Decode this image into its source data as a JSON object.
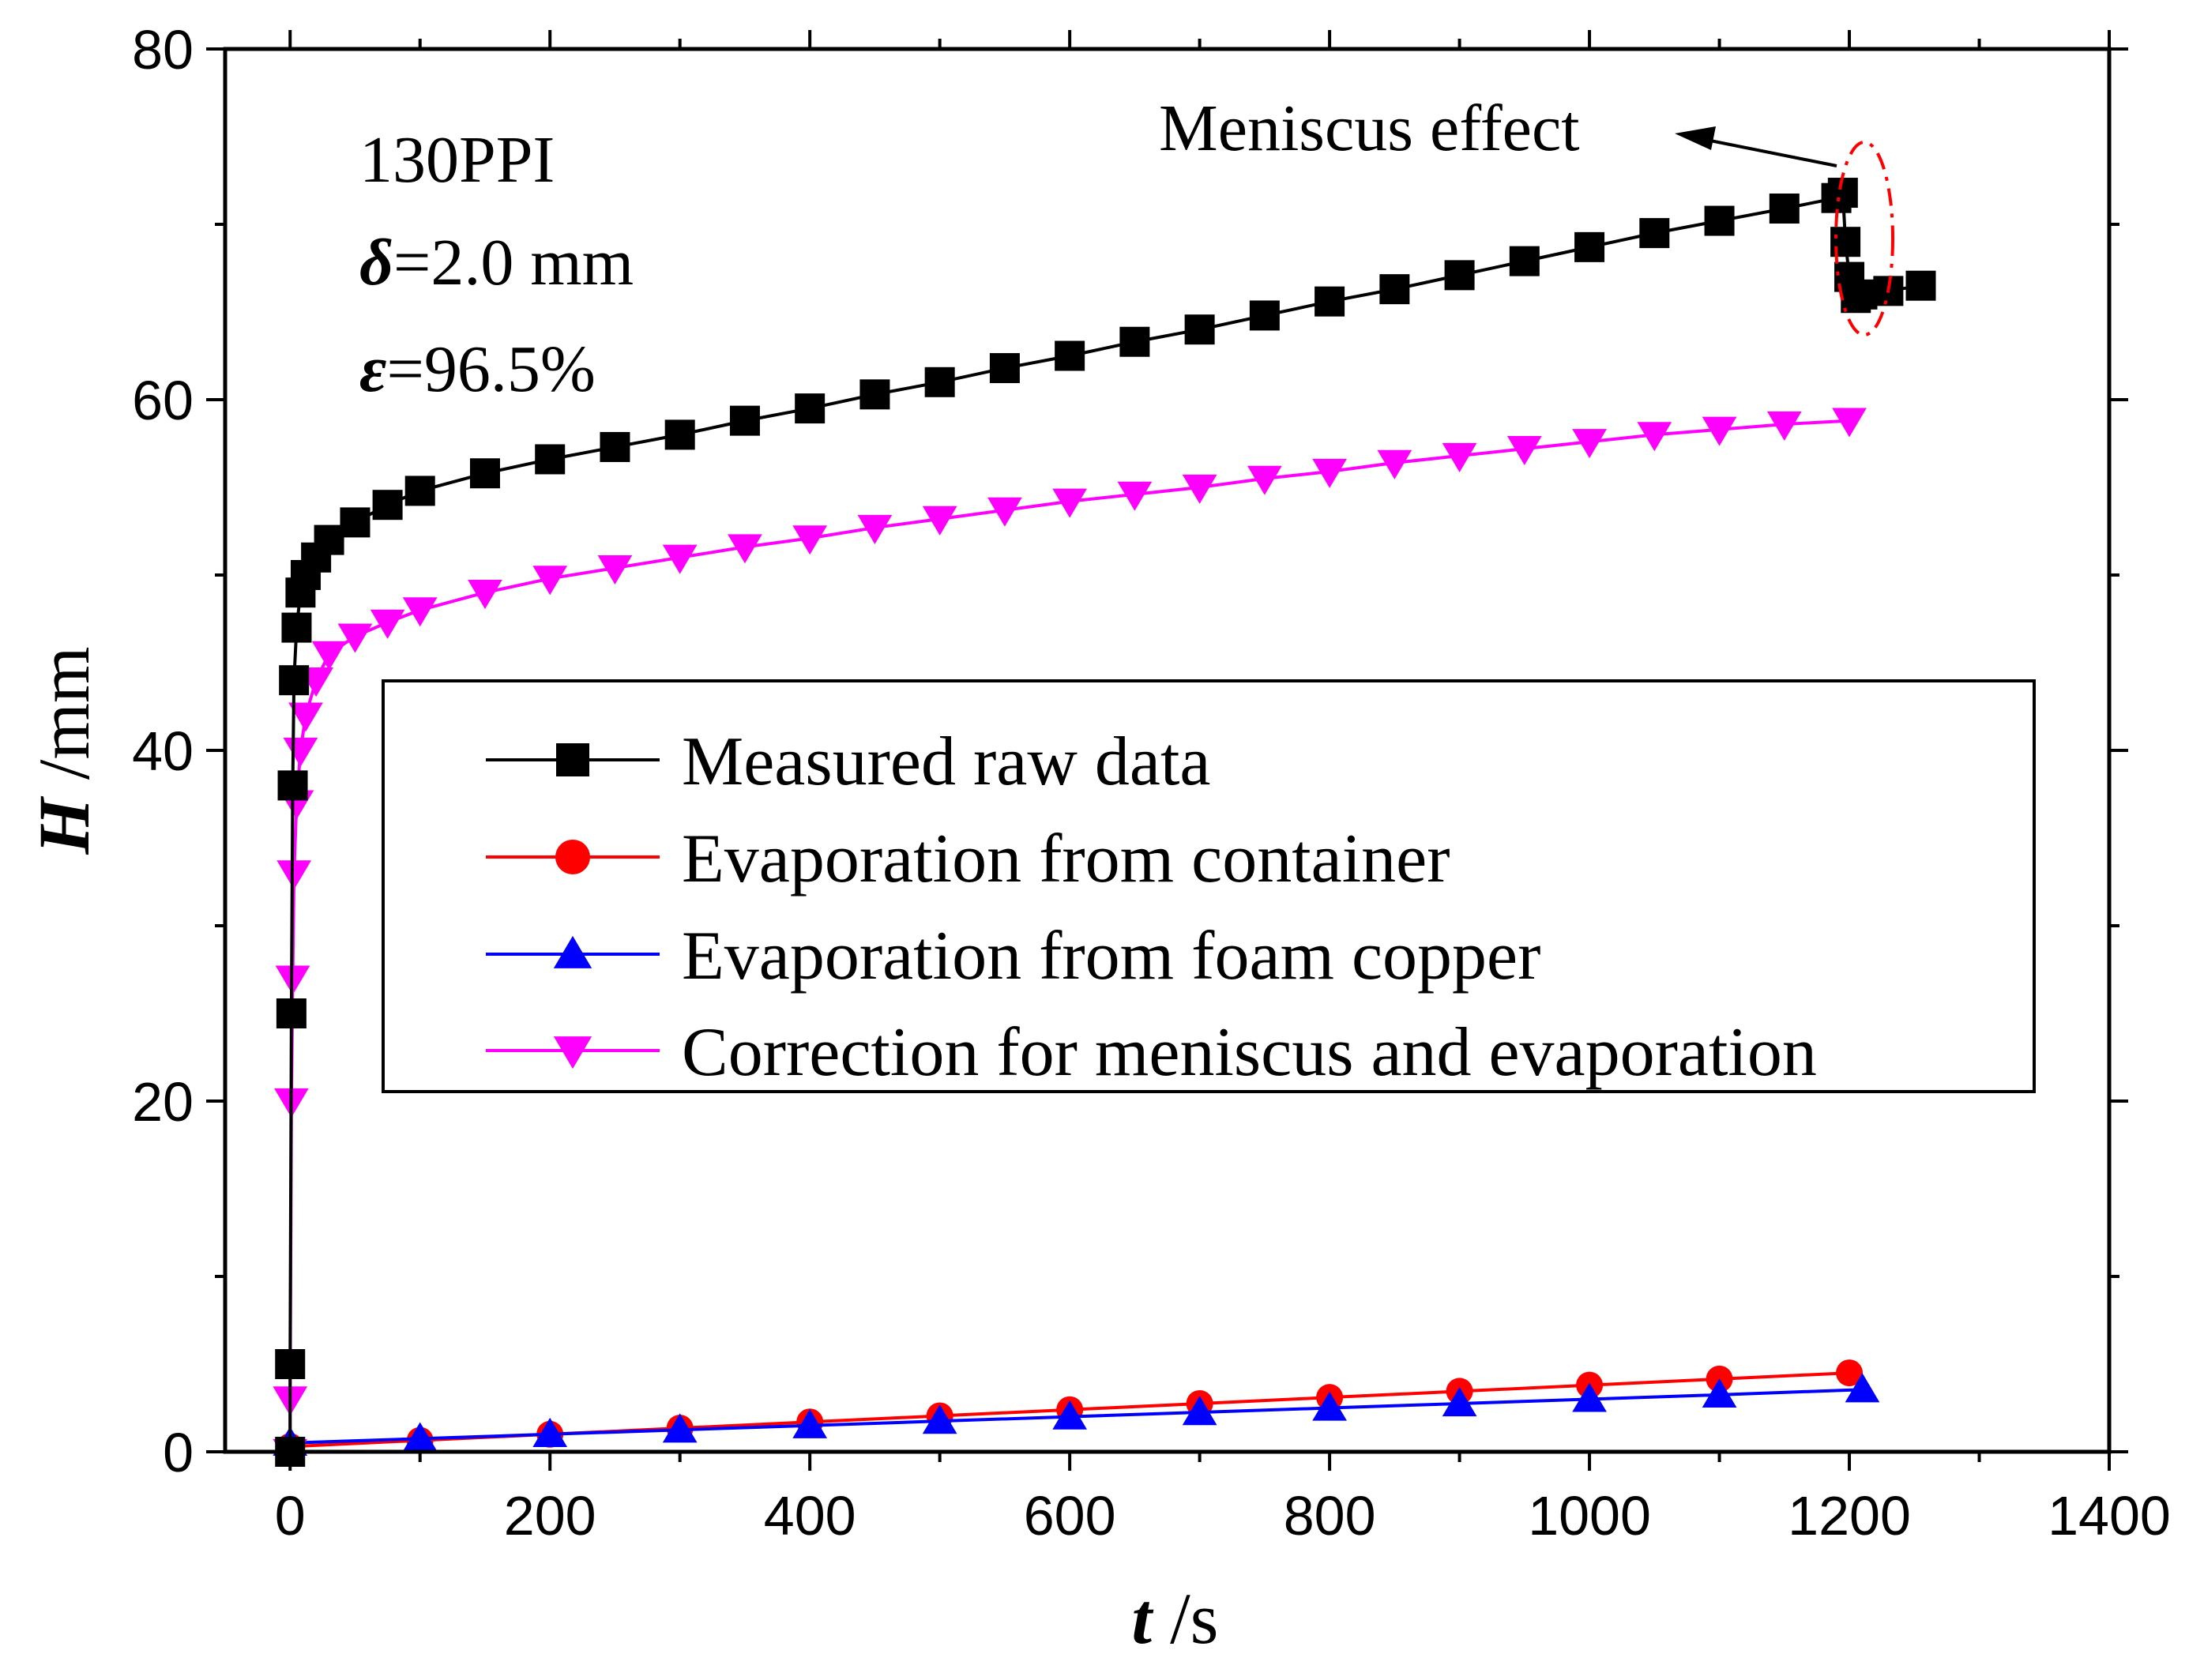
{
  "chart_data": {
    "type": "line",
    "xlabel": {
      "var": "t",
      "unit": " /s"
    },
    "ylabel": {
      "var": "H",
      "unit": " /mm"
    },
    "xlim": [
      -50,
      1400
    ],
    "ylim": [
      0,
      80
    ],
    "xticks": [
      "0",
      "200",
      "400",
      "600",
      "800",
      "1000",
      "1200",
      "1400"
    ],
    "xtick_values": [
      0,
      200,
      400,
      600,
      800,
      1000,
      1200,
      1400
    ],
    "yticks": [
      "0",
      "20",
      "40",
      "60",
      "80"
    ],
    "ytick_values": [
      0,
      20,
      40,
      60,
      80
    ],
    "grid": false,
    "legend_position": "center-right",
    "annotations": {
      "sample": "130PPI",
      "delta_sym": "δ",
      "delta_val": "=2.0 mm",
      "eps_sym": "ε",
      "eps_val": "=96.5%",
      "meniscus": "Meniscus effect"
    },
    "series": [
      {
        "name": "Measured raw data",
        "color": "#000000",
        "marker": "square",
        "x": [
          0,
          0,
          1,
          2,
          3,
          5,
          8,
          12,
          20,
          30,
          50,
          75,
          100,
          150,
          200,
          250,
          300,
          350,
          400,
          450,
          500,
          550,
          600,
          650,
          700,
          750,
          800,
          850,
          900,
          950,
          1000,
          1050,
          1100,
          1150,
          1190,
          1195,
          1197,
          1200,
          1205,
          1210,
          1230,
          1255
        ],
        "y": [
          0,
          5,
          25,
          38,
          44,
          47,
          49,
          50,
          51,
          52,
          53,
          54,
          54.8,
          55.8,
          56.6,
          57.3,
          58,
          58.8,
          59.5,
          60.3,
          61,
          61.8,
          62.5,
          63.3,
          64,
          64.8,
          65.6,
          66.3,
          67.1,
          67.9,
          68.7,
          69.5,
          70.2,
          70.9,
          71.5,
          71.8,
          69,
          67,
          65.8,
          66,
          66.2,
          66.5
        ]
      },
      {
        "name": "Evaporation from container",
        "color": "#ff0000",
        "marker": "circle",
        "x": [
          0,
          100,
          200,
          300,
          400,
          500,
          600,
          700,
          800,
          900,
          1000,
          1100,
          1200
        ],
        "y": [
          0.3,
          0.65,
          1.0,
          1.35,
          1.7,
          2.05,
          2.4,
          2.75,
          3.1,
          3.45,
          3.8,
          4.15,
          4.5
        ]
      },
      {
        "name": "Evaporation from foam copper",
        "color": "#0000ff",
        "marker": "triangle-up",
        "x": [
          0,
          100,
          200,
          300,
          400,
          500,
          600,
          700,
          800,
          900,
          1000,
          1100,
          1210
        ],
        "y": [
          0.5,
          0.75,
          1.0,
          1.25,
          1.5,
          1.75,
          2.0,
          2.25,
          2.5,
          2.75,
          3.0,
          3.25,
          3.55
        ]
      },
      {
        "name": "Correction for meniscus and evaporation",
        "color": "#ff00ff",
        "marker": "triangle-down",
        "x": [
          0,
          0,
          1,
          2,
          3,
          5,
          8,
          12,
          20,
          30,
          50,
          75,
          100,
          150,
          200,
          250,
          300,
          350,
          400,
          450,
          500,
          550,
          600,
          650,
          700,
          750,
          800,
          850,
          900,
          950,
          1000,
          1050,
          1100,
          1150,
          1200
        ],
        "y": [
          0,
          3,
          20,
          27,
          33,
          37,
          40,
          42,
          44,
          45.5,
          46.5,
          47.3,
          48,
          49,
          49.8,
          50.4,
          51,
          51.6,
          52.1,
          52.7,
          53.2,
          53.7,
          54.2,
          54.6,
          55,
          55.5,
          55.9,
          56.4,
          56.8,
          57.2,
          57.6,
          58,
          58.3,
          58.6,
          58.8
        ]
      }
    ]
  }
}
